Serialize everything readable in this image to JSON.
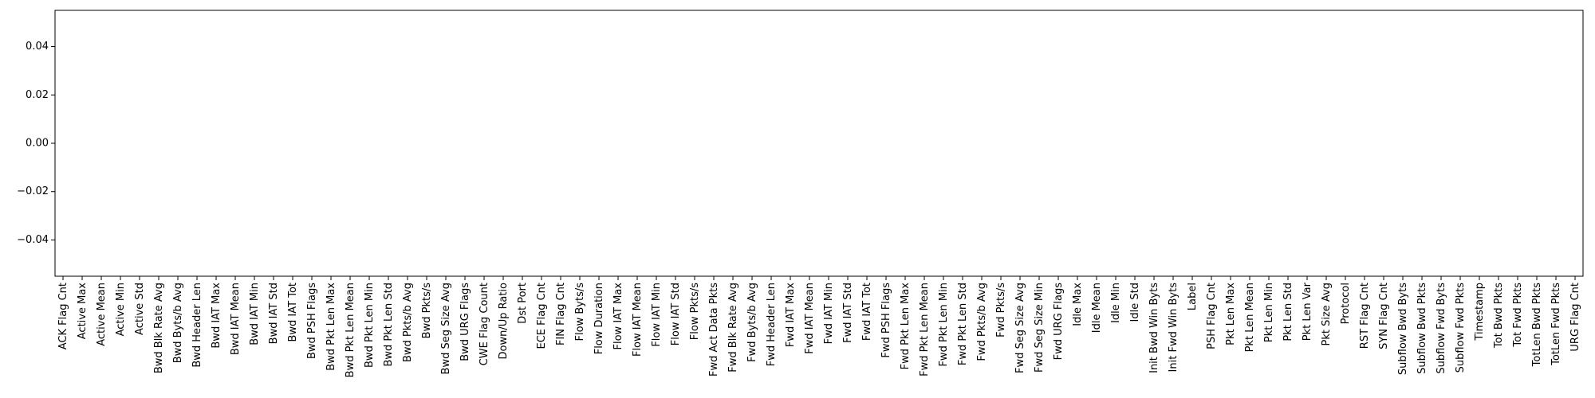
{
  "chart_data": {
    "type": "bar",
    "title": "",
    "xlabel": "",
    "ylabel": "",
    "ylim": [
      -0.055,
      0.055
    ],
    "yticks": [
      -0.04,
      -0.02,
      0.0,
      0.02,
      0.04
    ],
    "ytick_labels": [
      "−0.04",
      "−0.02",
      "0.00",
      "0.02",
      "0.04"
    ],
    "grid": false,
    "legend": "none",
    "categories": [
      "ACK Flag Cnt",
      "Active Max",
      "Active Mean",
      "Active Min",
      "Active Std",
      "Bwd Blk Rate Avg",
      "Bwd Byts/b Avg",
      "Bwd Header Len",
      "Bwd IAT Max",
      "Bwd IAT Mean",
      "Bwd IAT Min",
      "Bwd IAT Std",
      "Bwd IAT Tot",
      "Bwd PSH Flags",
      "Bwd Pkt Len Max",
      "Bwd Pkt Len Mean",
      "Bwd Pkt Len Min",
      "Bwd Pkt Len Std",
      "Bwd Pkts/b Avg",
      "Bwd Pkts/s",
      "Bwd Seg Size Avg",
      "Bwd URG Flags",
      "CWE Flag Count",
      "Down/Up Ratio",
      "Dst Port",
      "ECE Flag Cnt",
      "FIN Flag Cnt",
      "Flow Byts/s",
      "Flow Duration",
      "Flow IAT Max",
      "Flow IAT Mean",
      "Flow IAT Min",
      "Flow IAT Std",
      "Flow Pkts/s",
      "Fwd Act Data Pkts",
      "Fwd Blk Rate Avg",
      "Fwd Byts/b Avg",
      "Fwd Header Len",
      "Fwd IAT Max",
      "Fwd IAT Mean",
      "Fwd IAT Min",
      "Fwd IAT Std",
      "Fwd IAT Tot",
      "Fwd PSH Flags",
      "Fwd Pkt Len Max",
      "Fwd Pkt Len Mean",
      "Fwd Pkt Len Min",
      "Fwd Pkt Len Std",
      "Fwd Pkts/b Avg",
      "Fwd Pkts/s",
      "Fwd Seg Size Avg",
      "Fwd Seg Size Min",
      "Fwd URG Flags",
      "Idle Max",
      "Idle Mean",
      "Idle Min",
      "Idle Std",
      "Init Bwd Win Byts",
      "Init Fwd Win Byts",
      "Label",
      "PSH Flag Cnt",
      "Pkt Len Max",
      "Pkt Len Mean",
      "Pkt Len Min",
      "Pkt Len Std",
      "Pkt Len Var",
      "Pkt Size Avg",
      "Protocol",
      "RST Flag Cnt",
      "SYN Flag Cnt",
      "Subflow Bwd Byts",
      "Subflow Bwd Pkts",
      "Subflow Fwd Byts",
      "Subflow Fwd Pkts",
      "Timestamp",
      "Tot Bwd Pkts",
      "Tot Fwd Pkts",
      "TotLen Bwd Pkts",
      "TotLen Fwd Pkts",
      "URG Flag Cnt"
    ],
    "values": [
      0,
      0,
      0,
      0,
      0,
      0,
      0,
      0,
      0,
      0,
      0,
      0,
      0,
      0,
      0,
      0,
      0,
      0,
      0,
      0,
      0,
      0,
      0,
      0,
      0,
      0,
      0,
      0,
      0,
      0,
      0,
      0,
      0,
      0,
      0,
      0,
      0,
      0,
      0,
      0,
      0,
      0,
      0,
      0,
      0,
      0,
      0,
      0,
      0,
      0,
      0,
      0,
      0,
      0,
      0,
      0,
      0,
      0,
      0,
      0,
      0,
      0,
      0,
      0,
      0,
      0,
      0,
      0,
      0,
      0,
      0,
      0,
      0,
      0,
      0,
      0,
      0,
      0,
      0,
      0
    ]
  }
}
